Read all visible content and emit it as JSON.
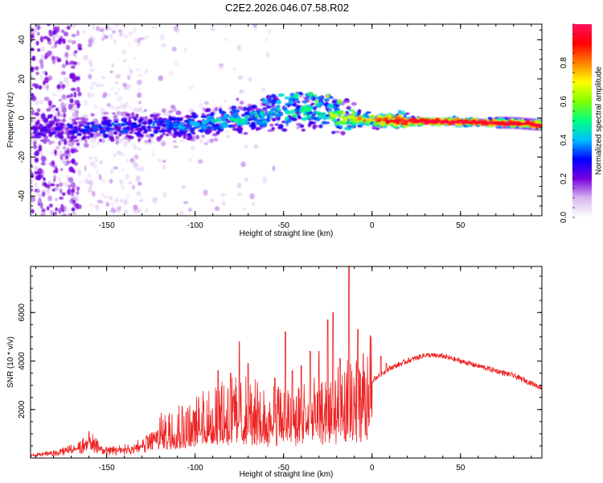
{
  "figure": {
    "title": "C2E2.2026.046.07.58.R02"
  },
  "chart_data": [
    {
      "type": "heatmap",
      "title": "",
      "xlabel": "Height of straight line (km)",
      "ylabel": "Frequency (Hz)",
      "xlim": [
        -193,
        96
      ],
      "ylim": [
        -50,
        48
      ],
      "x_ticks": [
        -150,
        -100,
        -50,
        0,
        50
      ],
      "y_ticks": [
        -40,
        -20,
        0,
        20,
        40
      ],
      "x_tick_labels": [
        "-150",
        "-100",
        "-50",
        "0",
        "50"
      ],
      "y_tick_labels": [
        "-40",
        "-20",
        "0",
        "20",
        "40"
      ],
      "grid": false,
      "ridge": {
        "description": "central frequency of spectral energy vs height",
        "x": [
          -190,
          -170,
          -150,
          -120,
          -100,
          -80,
          -60,
          -40,
          -20,
          0,
          20,
          50,
          80,
          95
        ],
        "y": [
          -7,
          -6,
          -5,
          -4,
          -3,
          -1,
          1,
          3,
          1,
          -1,
          -1.5,
          -2,
          -2.5,
          -3.5
        ],
        "amplitude": [
          0.2,
          0.25,
          0.3,
          0.3,
          0.35,
          0.4,
          0.4,
          0.45,
          0.55,
          0.75,
          0.95,
          0.95,
          0.9,
          0.95
        ]
      },
      "colorbar": {
        "label": "Normalized spectral amplitude",
        "range": [
          0,
          1
        ],
        "ticks": [
          0.0,
          0.2,
          0.4,
          0.6,
          0.8
        ],
        "tick_labels": [
          "0.0",
          "0.2",
          "0.4",
          "0.6",
          "0.8"
        ],
        "colormap": [
          "#ffffff",
          "#d8b8f0",
          "#7a00e0",
          "#0000ff",
          "#00c0ff",
          "#00ff80",
          "#80ff00",
          "#ffff00",
          "#ff8000",
          "#ff0000",
          "#ff1060"
        ]
      }
    },
    {
      "type": "line",
      "title": "",
      "xlabel": "Height of straight line (km)",
      "ylabel": "SNR (10 * v/v)",
      "xlim": [
        -193,
        96
      ],
      "ylim": [
        0,
        7900
      ],
      "x_ticks": [
        -150,
        -100,
        -50,
        0,
        50
      ],
      "y_ticks": [
        2000,
        4000,
        6000
      ],
      "x_tick_labels": [
        "-150",
        "-100",
        "-50",
        "0",
        "50"
      ],
      "y_tick_labels": [
        "2000",
        "4000",
        "6000"
      ],
      "grid": false,
      "series": [
        {
          "name": "SNR",
          "color": "#ee2222",
          "envelope_x": [
            -193,
            -180,
            -165,
            -160,
            -150,
            -140,
            -130,
            -120,
            -110,
            -100,
            -90,
            -80,
            -70,
            -60,
            -50,
            -40,
            -30,
            -20,
            -15,
            -10,
            -5,
            0,
            10,
            20,
            30,
            40,
            50,
            60,
            70,
            80,
            96
          ],
          "envelope_y": [
            150,
            300,
            600,
            1000,
            400,
            500,
            700,
            1200,
            1400,
            1500,
            1800,
            2000,
            2000,
            1800,
            1800,
            1900,
            2000,
            2200,
            2400,
            2400,
            2400,
            3200,
            3700,
            4000,
            4250,
            4200,
            4000,
            3800,
            3600,
            3400,
            2900
          ],
          "spikes": [
            {
              "x": -87,
              "y": 3600
            },
            {
              "x": -80,
              "y": 3500
            },
            {
              "x": -75,
              "y": 4800
            },
            {
              "x": -70,
              "y": 3900
            },
            {
              "x": -55,
              "y": 3300
            },
            {
              "x": -49,
              "y": 5200
            },
            {
              "x": -45,
              "y": 3600
            },
            {
              "x": -40,
              "y": 3800
            },
            {
              "x": -35,
              "y": 4400
            },
            {
              "x": -30,
              "y": 4400
            },
            {
              "x": -25,
              "y": 5700
            },
            {
              "x": -22,
              "y": 6000
            },
            {
              "x": -18,
              "y": 4100
            },
            {
              "x": -13,
              "y": 7900
            },
            {
              "x": -8,
              "y": 5300
            },
            {
              "x": -5,
              "y": 4300
            },
            {
              "x": 5,
              "y": 4200
            },
            {
              "x": 8,
              "y": 3900
            }
          ]
        }
      ]
    }
  ]
}
